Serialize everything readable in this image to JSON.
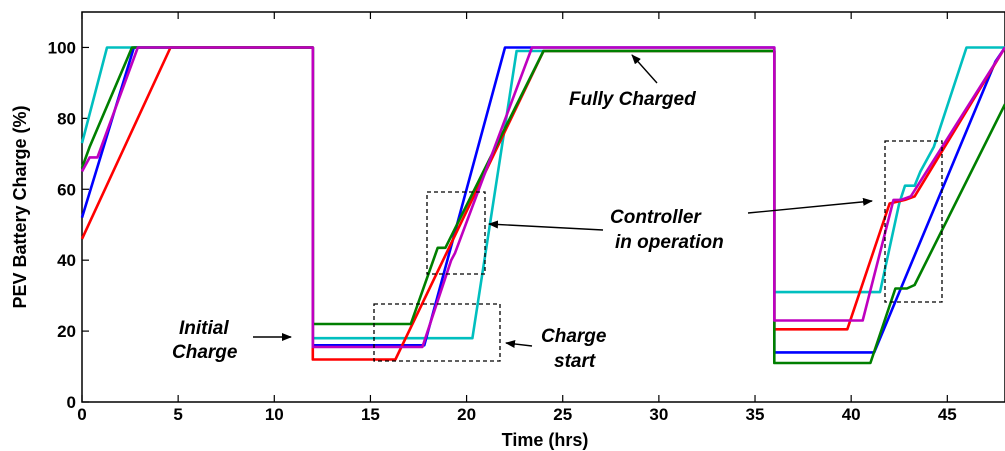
{
  "chart_data": {
    "type": "line",
    "title": "",
    "xlabel": "Time (hrs)",
    "ylabel": "PEV Battery Charge (%)",
    "xlim": [
      0,
      48
    ],
    "ylim": [
      0,
      110
    ],
    "xticks": [
      0,
      5,
      10,
      15,
      20,
      25,
      30,
      35,
      40,
      45
    ],
    "yticks": [
      0,
      20,
      40,
      60,
      80,
      100
    ],
    "grid": false,
    "legend": "none",
    "series": [
      {
        "color": "#00bfbf",
        "x": [
          0,
          1.3,
          12,
          12,
          20.3,
          22.6,
          36,
          36,
          41.5,
          42.5,
          42.8,
          43.3,
          43.6,
          44.3,
          46,
          48
        ],
        "y": [
          73,
          100,
          100,
          18,
          18,
          99,
          99,
          31,
          31,
          56,
          61,
          61,
          65,
          72,
          100,
          100
        ]
      },
      {
        "color": "#0000ff",
        "x": [
          0,
          2.7,
          12,
          12,
          17.8,
          22.0,
          36,
          36,
          41.2,
          47.5,
          48
        ],
        "y": [
          52,
          100,
          100,
          16,
          16,
          100,
          100,
          14,
          14,
          96,
          100
        ]
      },
      {
        "color": "#ff0000",
        "x": [
          0,
          4.6,
          12,
          12,
          16.3,
          24.0,
          36,
          36,
          39.8,
          42.0,
          42.8,
          43.3,
          48
        ],
        "y": [
          46,
          100,
          100,
          12,
          12,
          99,
          99,
          20.5,
          20.5,
          56,
          57,
          58,
          100
        ]
      },
      {
        "color": "#007f00",
        "x": [
          0,
          0.4,
          2.6,
          12,
          12,
          17.1,
          18.5,
          18.9,
          24.0,
          36,
          36,
          41.0,
          42.3,
          42.9,
          43.3,
          48
        ],
        "y": [
          66,
          72,
          100,
          100,
          22,
          22,
          43.5,
          43.5,
          99,
          99,
          11,
          11,
          32,
          32,
          33,
          84
        ]
      },
      {
        "color": "#bf00bf",
        "x": [
          0,
          0.4,
          0.8,
          2.9,
          12,
          12,
          17.7,
          19.2,
          19.4,
          23.4,
          36,
          36,
          40.6,
          42.2,
          42.6,
          43.1,
          48
        ],
        "y": [
          65,
          69,
          69,
          100,
          100,
          15.5,
          15.5,
          40,
          42,
          100,
          100,
          23,
          23,
          57,
          57,
          58,
          100
        ]
      }
    ],
    "annotations": [
      {
        "text": "Fully Charged"
      },
      {
        "text": "Controller"
      },
      {
        "text": "in operation"
      },
      {
        "text": "Initial"
      },
      {
        "text": "Charge"
      },
      {
        "text": "Charge"
      },
      {
        "text": "start"
      }
    ]
  }
}
